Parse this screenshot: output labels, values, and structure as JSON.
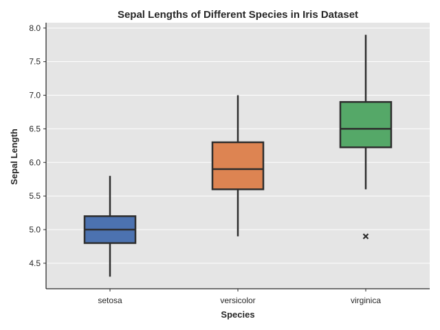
{
  "chart_data": {
    "type": "box",
    "title": "Sepal Lengths of Different Species in Iris Dataset",
    "xlabel": "Species",
    "ylabel": "Sepal Length",
    "ylim": [
      4.12,
      8.08
    ],
    "yticks": [
      4.5,
      5.0,
      5.5,
      6.0,
      6.5,
      7.0,
      7.5,
      8.0
    ],
    "ytick_labels": [
      "4.5",
      "5.0",
      "5.5",
      "6.0",
      "6.5",
      "7.0",
      "7.5",
      "8.0"
    ],
    "grid": "horizontal",
    "categories": [
      "setosa",
      "versicolor",
      "virginica"
    ],
    "boxes": [
      {
        "category": "setosa",
        "whisker_low": 4.3,
        "q1": 4.8,
        "median": 5.0,
        "q3": 5.2,
        "whisker_high": 5.8,
        "outliers": [],
        "color": "#4c72b0"
      },
      {
        "category": "versicolor",
        "whisker_low": 4.9,
        "q1": 5.6,
        "median": 5.9,
        "q3": 6.3,
        "whisker_high": 7.0,
        "outliers": [],
        "color": "#dd8452"
      },
      {
        "category": "virginica",
        "whisker_low": 5.6,
        "q1": 6.225,
        "median": 6.5,
        "q3": 6.9,
        "whisker_high": 7.9,
        "outliers": [
          4.9
        ],
        "color": "#55a868"
      }
    ],
    "colors": {
      "plot_background": "#e5e5e5",
      "grid": "#ffffff",
      "line": "#2d2d2d"
    }
  }
}
